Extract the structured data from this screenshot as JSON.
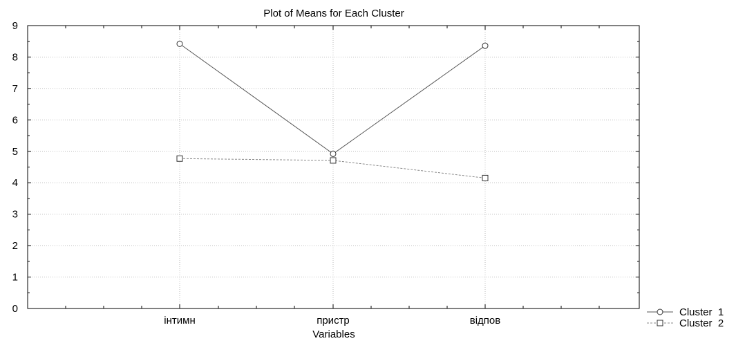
{
  "chart_data": {
    "type": "line",
    "title": "Plot of Means for Each Cluster",
    "xlabel": "Variables",
    "ylabel": "",
    "categories": [
      "інтимн",
      "пристр",
      "відпов"
    ],
    "ylim": [
      0,
      9
    ],
    "yticks": [
      0,
      1,
      2,
      3,
      4,
      5,
      6,
      7,
      8,
      9
    ],
    "grid": true,
    "legend_position": "bottom-right",
    "series": [
      {
        "name": "Cluster  1",
        "values": [
          8.42,
          4.92,
          8.36
        ],
        "marker": "circle",
        "line_style": "solid",
        "color": "#555555"
      },
      {
        "name": "Cluster  2",
        "values": [
          4.77,
          4.71,
          4.15
        ],
        "marker": "square",
        "line_style": "dashed",
        "color": "#888888"
      }
    ]
  }
}
